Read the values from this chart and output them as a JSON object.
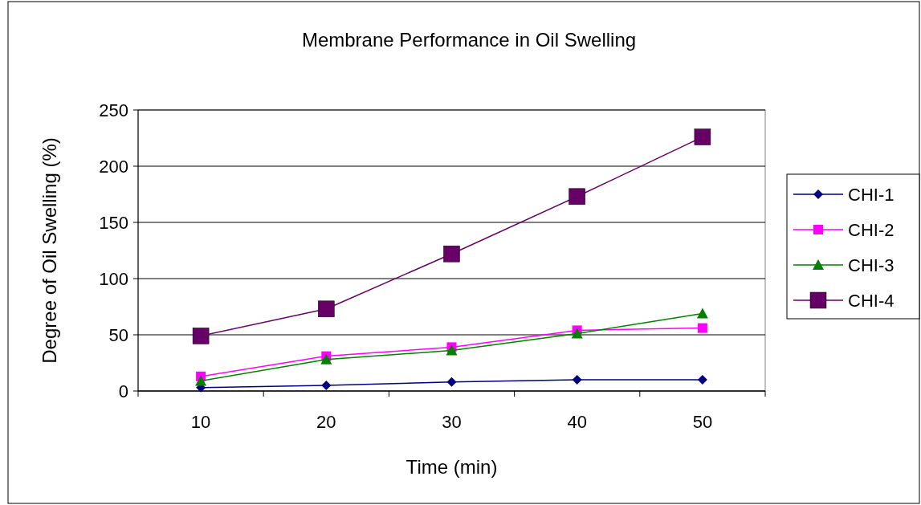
{
  "chart_data": {
    "type": "line",
    "title": "Membrane Performance in Oil Swelling",
    "xlabel": "Time (min)",
    "ylabel": "Degree of Oil Swelling (%)",
    "categories": [
      "10",
      "20",
      "30",
      "40",
      "50"
    ],
    "series": [
      {
        "name": "CHI-1",
        "color": "#000080",
        "marker": "diamond",
        "values": [
          3,
          5,
          8,
          10,
          10
        ]
      },
      {
        "name": "CHI-2",
        "color": "#ff00ff",
        "marker": "square",
        "values": [
          13,
          31,
          39,
          54,
          56
        ]
      },
      {
        "name": "CHI-3",
        "color": "#008000",
        "marker": "triangle",
        "values": [
          9,
          28,
          36,
          51,
          69
        ]
      },
      {
        "name": "CHI-4",
        "color": "#660066",
        "marker": "square",
        "values": [
          49,
          73,
          122,
          173,
          226
        ]
      }
    ],
    "ylim": [
      0,
      250
    ],
    "yticks": [
      0,
      50,
      100,
      150,
      200,
      250
    ],
    "grid": "y",
    "legend": "right",
    "line_style": "solid"
  }
}
